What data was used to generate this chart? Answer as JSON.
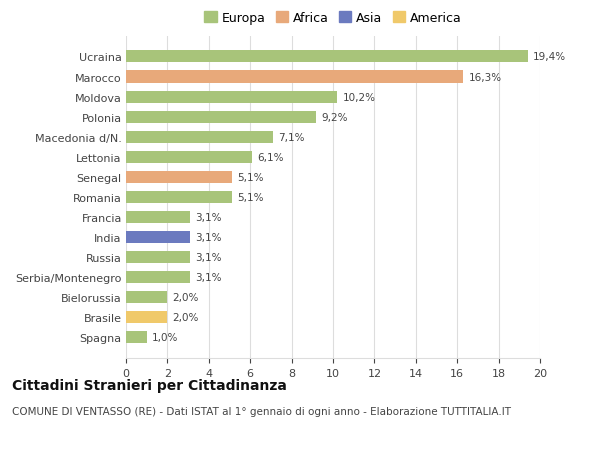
{
  "countries": [
    "Ucraina",
    "Marocco",
    "Moldova",
    "Polonia",
    "Macedonia d/N.",
    "Lettonia",
    "Senegal",
    "Romania",
    "Francia",
    "India",
    "Russia",
    "Serbia/Montenegro",
    "Bielorussia",
    "Brasile",
    "Spagna"
  ],
  "values": [
    19.4,
    16.3,
    10.2,
    9.2,
    7.1,
    6.1,
    5.1,
    5.1,
    3.1,
    3.1,
    3.1,
    3.1,
    2.0,
    2.0,
    1.0
  ],
  "labels": [
    "19,4%",
    "16,3%",
    "10,2%",
    "9,2%",
    "7,1%",
    "6,1%",
    "5,1%",
    "5,1%",
    "3,1%",
    "3,1%",
    "3,1%",
    "3,1%",
    "2,0%",
    "2,0%",
    "1,0%"
  ],
  "continents": [
    "Europa",
    "Africa",
    "Europa",
    "Europa",
    "Europa",
    "Europa",
    "Africa",
    "Europa",
    "Europa",
    "Asia",
    "Europa",
    "Europa",
    "Europa",
    "America",
    "Europa"
  ],
  "colors": {
    "Europa": "#a8c47a",
    "Africa": "#e8a97a",
    "Asia": "#6b7abf",
    "America": "#f0c96a"
  },
  "title": "Cittadini Stranieri per Cittadinanza",
  "subtitle": "COMUNE DI VENTASSO (RE) - Dati ISTAT al 1° gennaio di ogni anno - Elaborazione TUTTITALIA.IT",
  "xlim": [
    0,
    20
  ],
  "xticks": [
    0,
    2,
    4,
    6,
    8,
    10,
    12,
    14,
    16,
    18,
    20
  ],
  "background_color": "#ffffff",
  "grid_color": "#dddddd",
  "bar_height": 0.6,
  "title_fontsize": 10,
  "subtitle_fontsize": 7.5,
  "label_fontsize": 7.5,
  "tick_fontsize": 8,
  "legend_fontsize": 9
}
